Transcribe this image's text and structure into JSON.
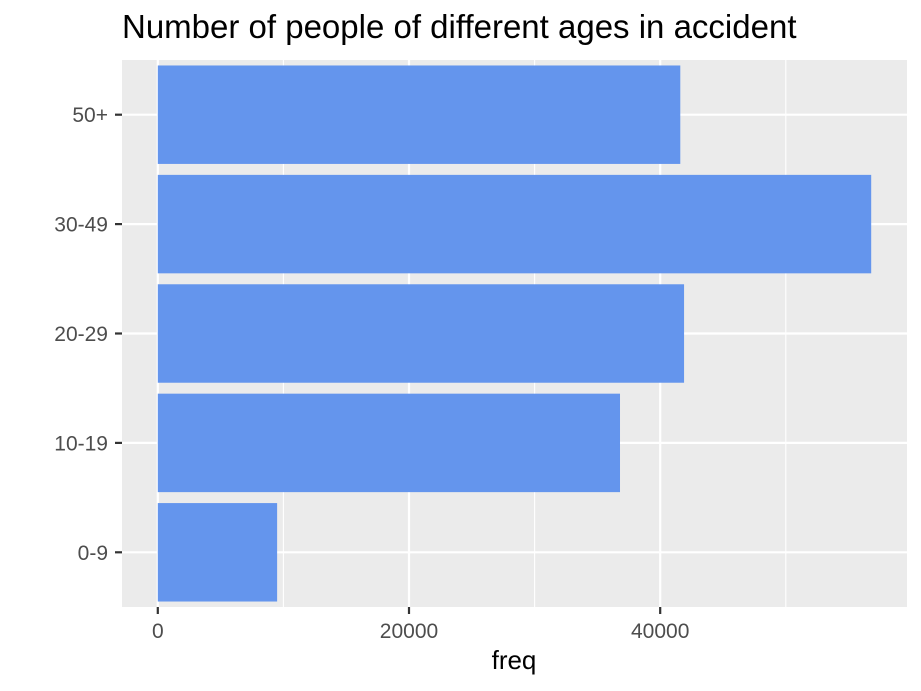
{
  "chart_data": {
    "type": "bar",
    "orientation": "horizontal",
    "title": "Number of people of different ages in accident",
    "xlabel": "freq",
    "ylabel": "",
    "categories": [
      "0-9",
      "10-19",
      "20-29",
      "30-49",
      "50+"
    ],
    "values": [
      9500,
      36800,
      41900,
      56800,
      41600
    ],
    "x_ticks": [
      0,
      20000,
      40000
    ],
    "x_tick_labels": [
      "0",
      "20000",
      "40000"
    ],
    "xlim": [
      -2850,
      59650
    ],
    "grid": true,
    "legend": "none",
    "colors": {
      "bar": "#6495ED",
      "panel": "#EBEBEB",
      "grid": "#FFFFFF"
    }
  }
}
